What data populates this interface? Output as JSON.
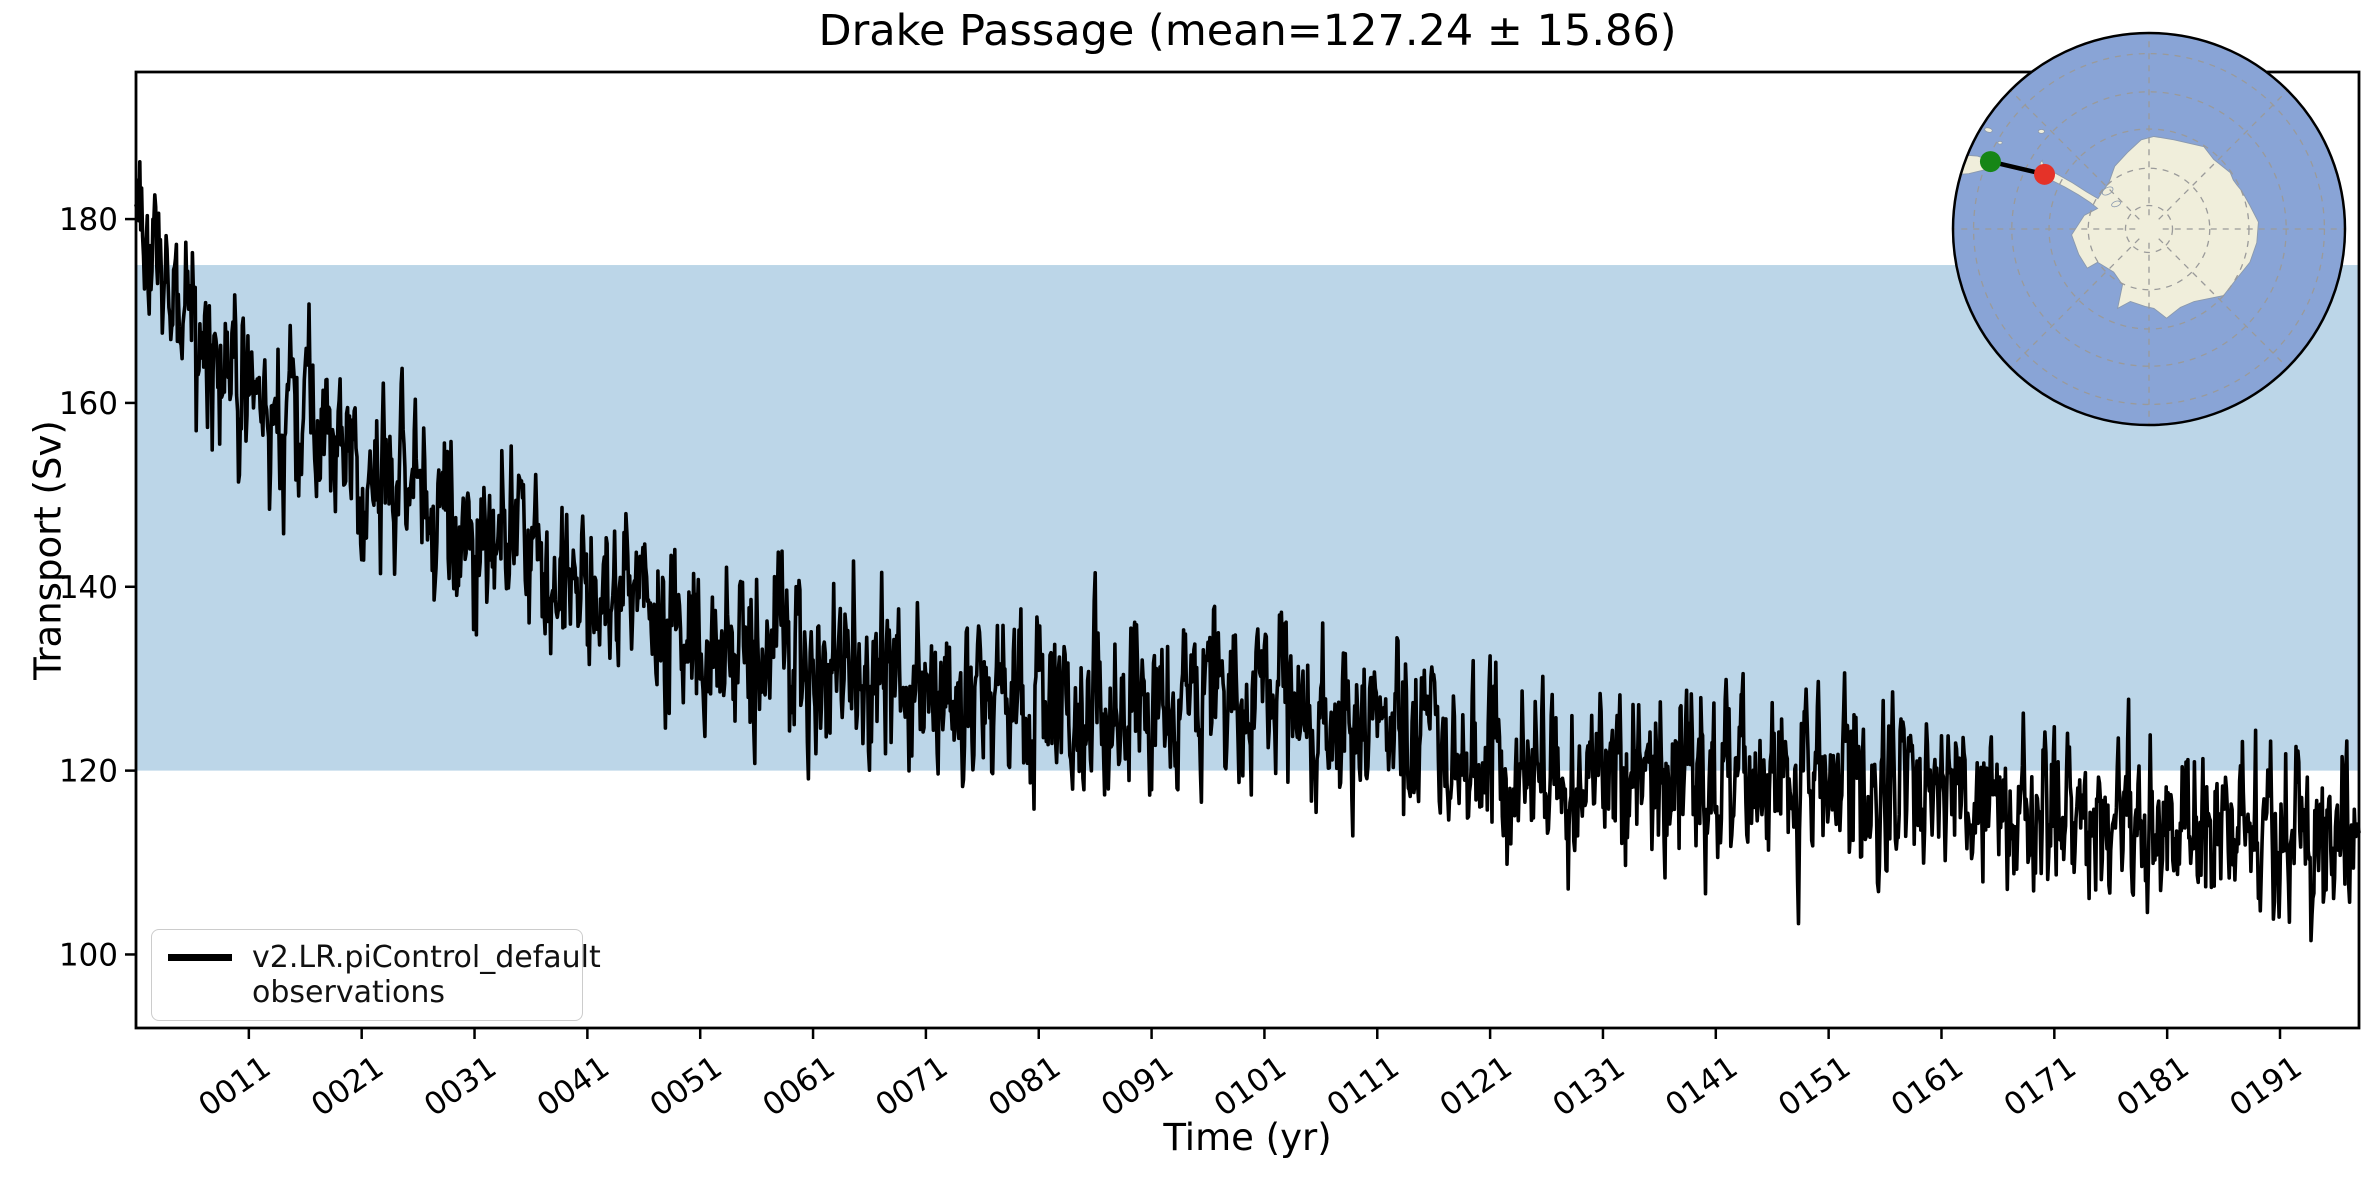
{
  "title": "Drake Passage (mean=127.24 ± 15.86)",
  "chart_data": {
    "type": "line",
    "title": "Drake Passage (mean=127.24 ± 15.86)",
    "xlabel": "Time (yr)",
    "ylabel": "Transport (Sv)",
    "xlim": [
      1,
      198
    ],
    "ylim": [
      92,
      196
    ],
    "grid": false,
    "legend_position": "lower left",
    "x_tick_years": [
      11,
      21,
      31,
      41,
      51,
      61,
      71,
      81,
      91,
      101,
      111,
      121,
      131,
      141,
      151,
      161,
      171,
      181,
      191
    ],
    "x_tick_labels": [
      "0011",
      "0021",
      "0031",
      "0041",
      "0051",
      "0061",
      "0071",
      "0081",
      "0091",
      "0101",
      "0111",
      "0121",
      "0131",
      "0141",
      "0151",
      "0161",
      "0171",
      "0181",
      "0191"
    ],
    "x_tick_rotation_deg": 35,
    "y_ticks": [
      100,
      120,
      140,
      160,
      180
    ],
    "series": [
      {
        "name": "v2.LR.piControl_default",
        "color": "#000000",
        "line_width": 3.6,
        "sampling": "monthly",
        "statistics": {
          "mean": 127.24,
          "std": 15.86
        },
        "trend_years": [
          1,
          2,
          3,
          5,
          8,
          10,
          13,
          16,
          20,
          25,
          30,
          35,
          40,
          45,
          50,
          55,
          60,
          65,
          70,
          75,
          80,
          85,
          90,
          95,
          100,
          103,
          106,
          110,
          115,
          120,
          125,
          130,
          135,
          140,
          145,
          150,
          155,
          160,
          165,
          170,
          175,
          180,
          185,
          190,
          195,
          198
        ],
        "trend_values": [
          184,
          180,
          176.5,
          171,
          166,
          162.5,
          159.5,
          157,
          154.5,
          151.5,
          149,
          145.5,
          141.5,
          138.5,
          136.5,
          134.5,
          133,
          132,
          130,
          128.5,
          127.5,
          127,
          127.8,
          128.4,
          129,
          127.5,
          125.5,
          124.5,
          123,
          122,
          121.5,
          120.5,
          120,
          119.5,
          119.5,
          118.5,
          118,
          117,
          116.5,
          116,
          115,
          114.5,
          114,
          113.5,
          113,
          112.5
        ],
        "noise": {
          "monthly_sd": 4.0,
          "ar": 0.45,
          "dip_prob": 0.025,
          "dip_base": 2,
          "dip_scale": 7,
          "seed": 1337
        }
      }
    ],
    "bands": [
      {
        "name": "observations",
        "ymin": 120,
        "ymax": 175,
        "color": "#bcd6e8"
      }
    ]
  },
  "legend": {
    "entries": [
      {
        "label": "v2.LR.piControl_default",
        "swatch": "line",
        "color": "#000000"
      },
      {
        "label": "observations",
        "swatch": "patch",
        "color": "#bcd6e8"
      }
    ]
  },
  "inset_map": {
    "name": "south-polar-stereographic-map",
    "ocean_color": "#89a4d6",
    "land_color": "#f0eedb",
    "coast_color": "#8a99ae",
    "graticule_color": "#9a9a9a",
    "border_color": "#000000",
    "transect": {
      "name": "drake-passage-transect",
      "line_color": "#000000",
      "start_marker": {
        "name": "transect-start-dot",
        "color": "#168616"
      },
      "end_marker": {
        "name": "transect-end-dot",
        "color": "#e53228"
      }
    }
  }
}
